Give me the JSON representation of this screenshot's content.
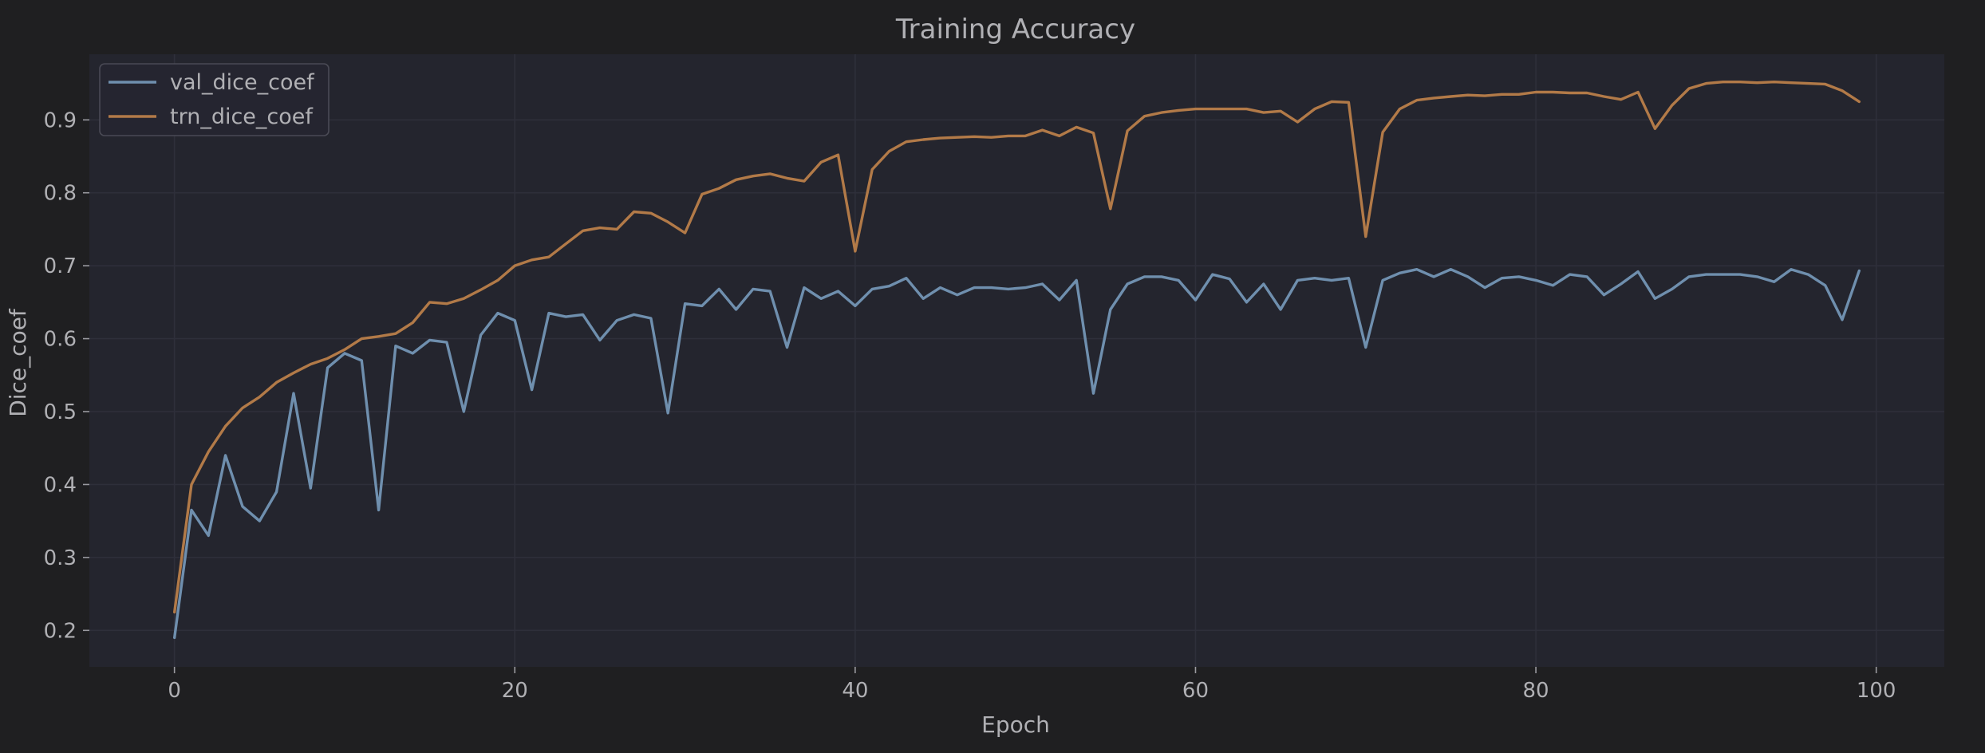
{
  "chart_data": {
    "type": "line",
    "title": "Training Accuracy",
    "xlabel": "Epoch",
    "ylabel": "Dice_coef",
    "xlim": [
      -5,
      104
    ],
    "ylim": [
      0.15,
      0.99
    ],
    "xticks": [
      0,
      20,
      40,
      60,
      80,
      100
    ],
    "yticks": [
      0.2,
      0.3,
      0.4,
      0.5,
      0.6,
      0.7,
      0.8,
      0.9
    ],
    "grid": true,
    "legend_position": "top-left",
    "x": [
      0,
      1,
      2,
      3,
      4,
      5,
      6,
      7,
      8,
      9,
      10,
      11,
      12,
      13,
      14,
      15,
      16,
      17,
      18,
      19,
      20,
      21,
      22,
      23,
      24,
      25,
      26,
      27,
      28,
      29,
      30,
      31,
      32,
      33,
      34,
      35,
      36,
      37,
      38,
      39,
      40,
      41,
      42,
      43,
      44,
      45,
      46,
      47,
      48,
      49,
      50,
      51,
      52,
      53,
      54,
      55,
      56,
      57,
      58,
      59,
      60,
      61,
      62,
      63,
      64,
      65,
      66,
      67,
      68,
      69,
      70,
      71,
      72,
      73,
      74,
      75,
      76,
      77,
      78,
      79,
      80,
      81,
      82,
      83,
      84,
      85,
      86,
      87,
      88,
      89,
      90,
      91,
      92,
      93,
      94,
      95,
      96,
      97,
      98,
      99
    ],
    "series": [
      {
        "name": "val_dice_coef",
        "color": "#6f8fae",
        "values": [
          0.19,
          0.365,
          0.33,
          0.44,
          0.37,
          0.35,
          0.39,
          0.525,
          0.395,
          0.56,
          0.58,
          0.57,
          0.365,
          0.59,
          0.58,
          0.598,
          0.595,
          0.5,
          0.605,
          0.635,
          0.625,
          0.53,
          0.635,
          0.63,
          0.633,
          0.598,
          0.625,
          0.633,
          0.628,
          0.498,
          0.648,
          0.645,
          0.668,
          0.64,
          0.668,
          0.665,
          0.588,
          0.67,
          0.655,
          0.665,
          0.645,
          0.668,
          0.672,
          0.683,
          0.655,
          0.67,
          0.66,
          0.67,
          0.67,
          0.668,
          0.67,
          0.675,
          0.653,
          0.68,
          0.525,
          0.64,
          0.675,
          0.685,
          0.685,
          0.68,
          0.653,
          0.688,
          0.682,
          0.65,
          0.675,
          0.64,
          0.68,
          0.683,
          0.68,
          0.683,
          0.588,
          0.68,
          0.69,
          0.695,
          0.685,
          0.695,
          0.685,
          0.67,
          0.683,
          0.685,
          0.68,
          0.673,
          0.688,
          0.685,
          0.66,
          0.675,
          0.692,
          0.655,
          0.668,
          0.685,
          0.688,
          0.688,
          0.688,
          0.685,
          0.678,
          0.695,
          0.688,
          0.673,
          0.626,
          0.693
        ]
      },
      {
        "name": "trn_dice_coef",
        "color": "#b27a48",
        "values": [
          0.225,
          0.4,
          0.445,
          0.48,
          0.505,
          0.52,
          0.54,
          0.553,
          0.565,
          0.573,
          0.585,
          0.6,
          0.603,
          0.607,
          0.622,
          0.65,
          0.648,
          0.655,
          0.667,
          0.68,
          0.7,
          0.708,
          0.712,
          0.73,
          0.748,
          0.752,
          0.75,
          0.774,
          0.772,
          0.76,
          0.745,
          0.798,
          0.806,
          0.818,
          0.823,
          0.826,
          0.82,
          0.816,
          0.842,
          0.852,
          0.72,
          0.832,
          0.857,
          0.87,
          0.873,
          0.875,
          0.876,
          0.877,
          0.876,
          0.878,
          0.878,
          0.886,
          0.878,
          0.89,
          0.882,
          0.778,
          0.885,
          0.905,
          0.91,
          0.913,
          0.915,
          0.915,
          0.915,
          0.915,
          0.91,
          0.912,
          0.897,
          0.915,
          0.925,
          0.924,
          0.74,
          0.883,
          0.915,
          0.927,
          0.93,
          0.932,
          0.934,
          0.933,
          0.935,
          0.935,
          0.938,
          0.938,
          0.937,
          0.937,
          0.932,
          0.928,
          0.938,
          0.888,
          0.92,
          0.943,
          0.95,
          0.952,
          0.952,
          0.951,
          0.952,
          0.951,
          0.95,
          0.949,
          0.94,
          0.925
        ]
      }
    ]
  }
}
